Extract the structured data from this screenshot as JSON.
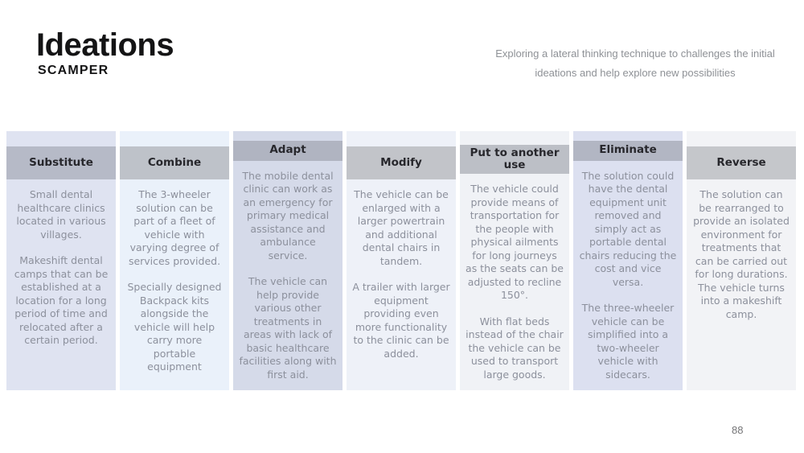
{
  "slide": {
    "title": "Ideations",
    "subtitle": "SCAMPER",
    "description": "Exploring a lateral thinking technique to challenges the initial ideations and help explore new possibilities",
    "page_number": "88"
  },
  "colors": {
    "background": "#ffffff",
    "title_text": "#141415",
    "description_text": "#8e9196",
    "header_text": "#27272c",
    "body_text": "#8c909c",
    "page_number_text": "#757577"
  },
  "columns": [
    {
      "title": "Substitute",
      "header_bg": "#b6bac7",
      "body_bg": "#dfe3f1",
      "paragraphs": [
        "Small dental healthcare clinics located in various villages.",
        "Makeshift dental camps that can be established at a location for a long period of time and relocated after a certain period."
      ]
    },
    {
      "title": "Combine",
      "header_bg": "#bec2c9",
      "body_bg": "#eaf1fa",
      "paragraphs": [
        "The 3-wheeler solution can be part of a fleet of vehicle with varying degree of services provided.",
        "Specially designed Backpack kits alongside the vehicle will help carry more portable equipment"
      ]
    },
    {
      "title": "Adapt",
      "header_bg": "#b0b4c1",
      "body_bg": "#d5dae9",
      "paragraphs": [
        "The mobile dental clinic can work as an emergency for primary medical assistance and ambulance service.",
        "The vehicle can help provide various other treatments in areas with lack of basic healthcare facilities along with first aid."
      ]
    },
    {
      "title": "Modify",
      "header_bg": "#c2c4c9",
      "body_bg": "#eef1f8",
      "paragraphs": [
        "The vehicle can be enlarged with a larger powertrain and additional dental chairs in tandem.",
        "A trailer with larger equipment providing even more functionality to the clinic can be added."
      ]
    },
    {
      "title": "Put to another use",
      "header_bg": "#bcbfc6",
      "body_bg": "#f0f2f6",
      "paragraphs": [
        "The vehicle could provide means of transportation for the people with physical ailments for long journeys as the seats can be adjusted to recline 150°.",
        "With flat beds instead of the chair the vehicle can be used to transport large goods."
      ]
    },
    {
      "title": "Eliminate",
      "header_bg": "#b2b6c3",
      "body_bg": "#dce0f0",
      "paragraphs": [
        "The solution could have the dental equipment unit removed and simply act as portable dental chairs reducing the cost and vice versa.",
        "The three-wheeler vehicle can be simplified into a two-wheeler vehicle with sidecars."
      ]
    },
    {
      "title": "Reverse",
      "header_bg": "#c5c7cb",
      "body_bg": "#f2f3f6",
      "paragraphs": [
        "The solution can be rearranged to provide an isolated environment for treatments that can be carried out for long durations. The vehicle turns into a makeshift camp."
      ]
    }
  ]
}
